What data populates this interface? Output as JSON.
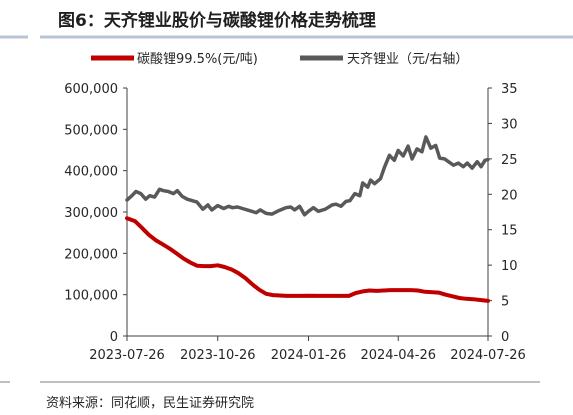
{
  "figure": {
    "title": "图6：天齐锂业股价与碳酸锂价格走势梳理",
    "source": "资料来源：同花顺，民生证券研究院"
  },
  "colors": {
    "title_bar": "#b8c4d4",
    "title_text": "#1f1f1f",
    "lithium_carbonate": "#c00000",
    "tianqi": "#595959",
    "axis": "#404040",
    "divider": "#7f7f7f"
  },
  "chart_data": {
    "type": "line",
    "x_axis": {
      "ticks": [
        "2023-07-26",
        "2023-10-26",
        "2024-01-26",
        "2024-04-26",
        "2024-07-26"
      ],
      "range": [
        "2023-07-26",
        "2024-07-26"
      ]
    },
    "y_left": {
      "range": [
        0,
        600000
      ],
      "ticks": [
        "0",
        "100,000",
        "200,000",
        "300,000",
        "400,000",
        "500,000",
        "600,000"
      ]
    },
    "y_right": {
      "range": [
        0,
        35
      ],
      "ticks": [
        "0",
        "5",
        "10",
        "15",
        "20",
        "25",
        "30",
        "35"
      ]
    },
    "grid": false,
    "legend_position": "top",
    "series": [
      {
        "name": "碳酸锂99.5%(元/吨)",
        "axis": "left",
        "color": "#c00000",
        "points": [
          [
            "2023-07-26",
            285000
          ],
          [
            "2023-08-03",
            278000
          ],
          [
            "2023-08-10",
            262000
          ],
          [
            "2023-08-17",
            245000
          ],
          [
            "2023-08-24",
            232000
          ],
          [
            "2023-08-31",
            222000
          ],
          [
            "2023-09-07",
            212000
          ],
          [
            "2023-09-14",
            200000
          ],
          [
            "2023-09-21",
            188000
          ],
          [
            "2023-09-28",
            178000
          ],
          [
            "2023-10-05",
            170000
          ],
          [
            "2023-10-12",
            169000
          ],
          [
            "2023-10-19",
            169000
          ],
          [
            "2023-10-26",
            171000
          ],
          [
            "2023-11-02",
            167000
          ],
          [
            "2023-11-09",
            161000
          ],
          [
            "2023-11-16",
            152000
          ],
          [
            "2023-11-23",
            140000
          ],
          [
            "2023-11-30",
            125000
          ],
          [
            "2023-12-07",
            112000
          ],
          [
            "2023-12-14",
            102000
          ],
          [
            "2023-12-21",
            99000
          ],
          [
            "2024-01-04",
            97000
          ],
          [
            "2024-01-18",
            97000
          ],
          [
            "2024-01-26",
            97500
          ],
          [
            "2024-02-08",
            97000
          ],
          [
            "2024-02-29",
            97000
          ],
          [
            "2024-03-07",
            97000
          ],
          [
            "2024-03-14",
            104000
          ],
          [
            "2024-03-21",
            108000
          ],
          [
            "2024-03-28",
            110000
          ],
          [
            "2024-04-04",
            109000
          ],
          [
            "2024-04-11",
            110000
          ],
          [
            "2024-04-18",
            111000
          ],
          [
            "2024-04-26",
            111000
          ],
          [
            "2024-05-09",
            111000
          ],
          [
            "2024-05-16",
            110000
          ],
          [
            "2024-05-23",
            107000
          ],
          [
            "2024-06-06",
            105000
          ],
          [
            "2024-06-13",
            100000
          ],
          [
            "2024-06-20",
            96000
          ],
          [
            "2024-06-27",
            92000
          ],
          [
            "2024-07-04",
            90000
          ],
          [
            "2024-07-11",
            89000
          ],
          [
            "2024-07-18",
            87000
          ],
          [
            "2024-07-26",
            85000
          ]
        ]
      },
      {
        "name": "天齐锂业（元/右轴）",
        "axis": "right",
        "color": "#595959",
        "points": [
          [
            "2023-07-26",
            19.2
          ],
          [
            "2023-07-31",
            19.8
          ],
          [
            "2023-08-04",
            20.4
          ],
          [
            "2023-08-09",
            20.1
          ],
          [
            "2023-08-14",
            19.3
          ],
          [
            "2023-08-18",
            19.8
          ],
          [
            "2023-08-23",
            19.6
          ],
          [
            "2023-08-28",
            20.7
          ],
          [
            "2023-09-01",
            20.5
          ],
          [
            "2023-09-06",
            20.4
          ],
          [
            "2023-09-11",
            20.1
          ],
          [
            "2023-09-15",
            20.5
          ],
          [
            "2023-09-20",
            19.7
          ],
          [
            "2023-09-25",
            19.3
          ],
          [
            "2023-10-05",
            18.9
          ],
          [
            "2023-10-11",
            17.9
          ],
          [
            "2023-10-16",
            18.5
          ],
          [
            "2023-10-20",
            17.8
          ],
          [
            "2023-10-26",
            18.4
          ],
          [
            "2023-11-01",
            18.0
          ],
          [
            "2023-11-06",
            18.3
          ],
          [
            "2023-11-10",
            18.1
          ],
          [
            "2023-11-15",
            18.2
          ],
          [
            "2023-11-20",
            18.0
          ],
          [
            "2023-11-27",
            17.7
          ],
          [
            "2023-12-04",
            17.4
          ],
          [
            "2023-12-08",
            17.8
          ],
          [
            "2023-12-14",
            17.3
          ],
          [
            "2023-12-20",
            17.2
          ],
          [
            "2023-12-27",
            17.7
          ],
          [
            "2024-01-03",
            18.1
          ],
          [
            "2024-01-08",
            18.2
          ],
          [
            "2024-01-12",
            17.8
          ],
          [
            "2024-01-17",
            18.3
          ],
          [
            "2024-01-22",
            17.1
          ],
          [
            "2024-01-26",
            17.6
          ],
          [
            "2024-01-31",
            18.1
          ],
          [
            "2024-02-05",
            17.6
          ],
          [
            "2024-02-12",
            17.9
          ],
          [
            "2024-02-19",
            18.5
          ],
          [
            "2024-02-23",
            18.6
          ],
          [
            "2024-02-28",
            18.3
          ],
          [
            "2024-03-04",
            19.0
          ],
          [
            "2024-03-08",
            19.1
          ],
          [
            "2024-03-13",
            20.1
          ],
          [
            "2024-03-18",
            19.8
          ],
          [
            "2024-03-21",
            21.6
          ],
          [
            "2024-03-26",
            21.0
          ],
          [
            "2024-03-29",
            22.0
          ],
          [
            "2024-04-02",
            21.5
          ],
          [
            "2024-04-08",
            22.2
          ],
          [
            "2024-04-12",
            23.8
          ],
          [
            "2024-04-17",
            25.5
          ],
          [
            "2024-04-22",
            24.8
          ],
          [
            "2024-04-26",
            26.2
          ],
          [
            "2024-05-01",
            25.4
          ],
          [
            "2024-05-06",
            26.8
          ],
          [
            "2024-05-10",
            25.0
          ],
          [
            "2024-05-15",
            26.4
          ],
          [
            "2024-05-20",
            26.0
          ],
          [
            "2024-05-24",
            28.1
          ],
          [
            "2024-05-29",
            26.5
          ],
          [
            "2024-06-03",
            26.9
          ],
          [
            "2024-06-07",
            25.1
          ],
          [
            "2024-06-12",
            25.0
          ],
          [
            "2024-06-17",
            24.5
          ],
          [
            "2024-06-21",
            24.1
          ],
          [
            "2024-06-26",
            24.4
          ],
          [
            "2024-07-01",
            23.9
          ],
          [
            "2024-07-05",
            24.4
          ],
          [
            "2024-07-10",
            23.7
          ],
          [
            "2024-07-15",
            24.6
          ],
          [
            "2024-07-19",
            23.9
          ],
          [
            "2024-07-23",
            24.8
          ],
          [
            "2024-07-26",
            24.9
          ]
        ]
      }
    ]
  }
}
